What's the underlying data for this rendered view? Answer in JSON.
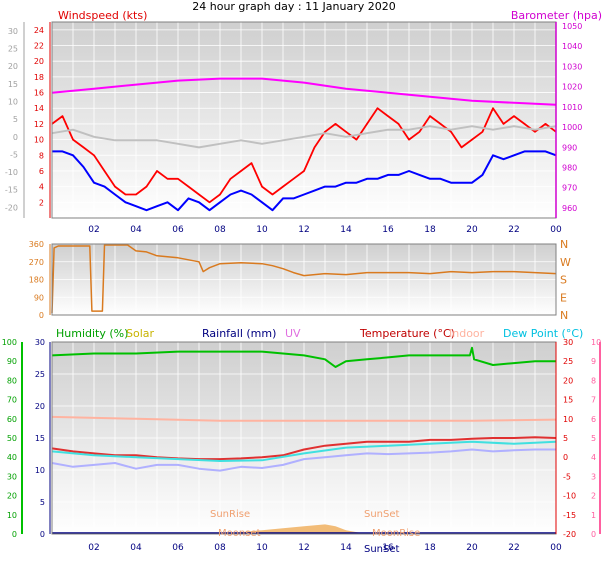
{
  "title": "24 hour graph day : 11 January 2020",
  "x_ticks": [
    "02",
    "04",
    "06",
    "08",
    "10",
    "12",
    "14",
    "16",
    "18",
    "20",
    "22",
    "00"
  ],
  "chart_data": [
    {
      "type": "line",
      "title": "",
      "labels": {
        "left": "Windspeed (kts)",
        "right": "Barometer (hpa)"
      },
      "x_range_hours": [
        0,
        24
      ],
      "left_axis": {
        "ticks": [
          2,
          4,
          6,
          8,
          10,
          12,
          14,
          16,
          18,
          20,
          22,
          24
        ],
        "range": [
          0,
          25
        ]
      },
      "outer_left_axis": {
        "ticks": [
          -20,
          -15,
          -10,
          -5,
          0,
          5,
          10,
          15,
          20,
          25,
          30
        ],
        "range": [
          -23,
          32.5
        ]
      },
      "right_axis": {
        "ticks": [
          960,
          970,
          980,
          990,
          1000,
          1010,
          1020,
          1030,
          1040,
          1050
        ],
        "range": [
          955,
          1052
        ]
      },
      "series": [
        {
          "name": "Windspeed (kts)",
          "axis": "left",
          "color": "#ff0000",
          "x": [
            0,
            0.5,
            1,
            1.5,
            2,
            2.5,
            3,
            3.5,
            4,
            4.5,
            5,
            5.5,
            6,
            6.5,
            7,
            7.5,
            8,
            8.5,
            9,
            9.5,
            10,
            10.5,
            11,
            11.5,
            12,
            12.5,
            13,
            13.5,
            14,
            14.5,
            15,
            15.5,
            16,
            16.5,
            17,
            17.5,
            18,
            18.5,
            19,
            19.5,
            20,
            20.5,
            21,
            21.5,
            22,
            22.5,
            23,
            23.5,
            24
          ],
          "y": [
            12,
            13,
            10,
            9,
            8,
            6,
            4,
            3,
            3,
            4,
            6,
            5,
            5,
            4,
            3,
            2,
            3,
            5,
            6,
            7,
            4,
            3,
            4,
            5,
            6,
            9,
            11,
            12,
            11,
            10,
            12,
            14,
            13,
            12,
            10,
            11,
            13,
            12,
            11,
            9,
            10,
            11,
            14,
            12,
            13,
            12,
            11,
            12,
            11
          ]
        },
        {
          "name": "Windspeed (kts)",
          "axis": "left",
          "color": "#0000ff",
          "x": [
            0,
            0.5,
            1,
            1.5,
            2,
            2.5,
            3,
            3.5,
            4,
            4.5,
            5,
            5.5,
            6,
            6.5,
            7,
            7.5,
            8,
            8.5,
            9,
            9.5,
            10,
            10.5,
            11,
            11.5,
            12,
            12.5,
            13,
            13.5,
            14,
            14.5,
            15,
            15.5,
            16,
            16.5,
            17,
            17.5,
            18,
            18.5,
            19,
            19.5,
            20,
            20.5,
            21,
            21.5,
            22,
            22.5,
            23,
            23.5,
            24
          ],
          "y": [
            8.5,
            8.5,
            8,
            6.5,
            4.5,
            4,
            3,
            2,
            1.5,
            1,
            1.5,
            2,
            1,
            2.5,
            2,
            1,
            2,
            3,
            3.5,
            3,
            2,
            1,
            2.5,
            2.5,
            3,
            3.5,
            4,
            4,
            4.5,
            4.5,
            5,
            5,
            5.5,
            5.5,
            6,
            5.5,
            5,
            5,
            4.5,
            4.5,
            4.5,
            5.5,
            8,
            7.5,
            8,
            8.5,
            8.5,
            8.5,
            8
          ]
        },
        {
          "name": "Outdoor temp (°C)",
          "axis": "outer_left",
          "color": "#c0c0c0",
          "x": [
            0,
            1,
            2,
            3,
            4,
            5,
            6,
            7,
            8,
            9,
            10,
            11,
            12,
            13,
            14,
            15,
            16,
            17,
            18,
            19,
            20,
            21,
            22,
            23,
            24
          ],
          "y": [
            1,
            2,
            0,
            -1,
            -1,
            -1,
            -2,
            -3,
            -2,
            -1,
            -2,
            -1,
            0,
            1,
            0,
            1,
            2,
            2,
            3,
            2,
            3,
            2,
            3,
            2,
            3
          ]
        },
        {
          "name": "Barometer (hpa)",
          "axis": "right",
          "color": "#ff00ff",
          "x": [
            0,
            2,
            4,
            6,
            8,
            10,
            12,
            14,
            16,
            18,
            20,
            22,
            24
          ],
          "y": [
            1017,
            1019,
            1021,
            1023,
            1024,
            1024,
            1022,
            1019,
            1017,
            1015,
            1013,
            1012,
            1011
          ]
        }
      ]
    },
    {
      "type": "line",
      "title": "",
      "left_axis": {
        "ticks": [
          0,
          90,
          180,
          270,
          360
        ],
        "range": [
          0,
          360
        ]
      },
      "right_axis": {
        "ticks": [
          "N",
          "E",
          "S",
          "W",
          "N"
        ]
      },
      "series": [
        {
          "name": "Wind direction",
          "color": "#d97a1f",
          "x": [
            0,
            0.1,
            0.3,
            1,
            1.8,
            1.9,
            2.4,
            2.5,
            3,
            3.6,
            4,
            4.5,
            5,
            6,
            7,
            7.2,
            7.5,
            8,
            9,
            10,
            10.5,
            11,
            11.5,
            12,
            13,
            14,
            15,
            16,
            17,
            18,
            19,
            20,
            21,
            22,
            23,
            24
          ],
          "y": [
            10,
            340,
            350,
            350,
            350,
            20,
            20,
            355,
            355,
            355,
            325,
            320,
            300,
            290,
            270,
            220,
            240,
            260,
            265,
            260,
            250,
            235,
            215,
            200,
            210,
            205,
            215,
            215,
            215,
            210,
            220,
            215,
            220,
            220,
            215,
            210
          ]
        }
      ]
    },
    {
      "type": "line",
      "title": "",
      "labels": {
        "humidity": "Humidity (%)",
        "solar": "Solar",
        "rainfall": "Rainfall (mm)",
        "uv": "UV",
        "temperature": "Temperature (°C)",
        "indoor": "Indoor",
        "dewpoint": "Dew Point (°C)"
      },
      "annotations": [
        "SunRise",
        "Moonset",
        "SunSet",
        "MoonRise",
        "SunSet"
      ],
      "humidity_axis": {
        "ticks": [
          0,
          10,
          20,
          30,
          40,
          50,
          60,
          70,
          80,
          90,
          100
        ],
        "range": [
          0,
          100
        ]
      },
      "rain_axis": {
        "ticks": [
          0,
          5,
          10,
          15,
          20,
          25,
          30
        ],
        "range": [
          0,
          30
        ]
      },
      "temp_axis": {
        "ticks": [
          -20,
          -15,
          -10,
          -5,
          0,
          5,
          10,
          15,
          20,
          25,
          30
        ],
        "range": [
          -20,
          30
        ]
      },
      "uv_axis": {
        "ticks": [
          0,
          1,
          2,
          3,
          4,
          5,
          6,
          7,
          8,
          9,
          10
        ],
        "range": [
          0,
          10
        ]
      },
      "series": [
        {
          "name": "Humidity (%)",
          "axis": "humidity",
          "color": "#00c000",
          "x": [
            0,
            2,
            4,
            6,
            7,
            8,
            9,
            10,
            11,
            12,
            13,
            13.5,
            14,
            15,
            16,
            17,
            18,
            19,
            19.9,
            20,
            20.1,
            21,
            22,
            23,
            24
          ],
          "y": [
            93,
            94,
            94,
            95,
            95,
            95,
            95,
            95,
            94,
            93,
            91,
            87,
            90,
            91,
            92,
            93,
            93,
            93,
            93,
            97,
            91,
            88,
            89,
            90,
            90
          ]
        },
        {
          "name": "Indoor",
          "axis": "temp",
          "color": "#ffb3a0",
          "x": [
            0,
            4,
            8,
            12,
            16,
            20,
            24
          ],
          "y": [
            10.5,
            10,
            9.5,
            9.5,
            9.5,
            9.5,
            9.8
          ]
        },
        {
          "name": "Temperature (°C)",
          "axis": "temp",
          "color": "#e03030",
          "x": [
            0,
            1,
            2,
            3,
            4,
            5,
            6,
            7,
            8,
            9,
            10,
            11,
            12,
            13,
            14,
            15,
            16,
            17,
            18,
            19,
            20,
            21,
            22,
            23,
            24
          ],
          "y": [
            2.3,
            1.5,
            1,
            0.5,
            0.5,
            0,
            -0.3,
            -0.5,
            -0.5,
            -0.3,
            0,
            0.5,
            2,
            3,
            3.5,
            4,
            4,
            4,
            4.5,
            4.5,
            4.8,
            5,
            5,
            5.2,
            5
          ]
        },
        {
          "name": "Dew Point (°C)",
          "axis": "temp",
          "color": "#40e0e0",
          "x": [
            0,
            2,
            4,
            6,
            8,
            10,
            12,
            14,
            16,
            18,
            20,
            22,
            24
          ],
          "y": [
            1.5,
            0.5,
            0,
            -0.5,
            -1,
            -0.8,
            1,
            2.5,
            3,
            3.5,
            4,
            3.5,
            4
          ]
        },
        {
          "name": "Outdoor temp (°C)",
          "axis": "temp",
          "color": "#b0b0ff",
          "x": [
            0,
            1,
            2,
            3,
            4,
            5,
            6,
            7,
            8,
            9,
            10,
            11,
            12,
            13,
            14,
            15,
            16,
            17,
            18,
            19,
            20,
            21,
            22,
            23,
            24
          ],
          "y": [
            -1.5,
            -2.5,
            -2,
            -1.5,
            -3,
            -2,
            -2,
            -3,
            -3.5,
            -2.5,
            -2.8,
            -2,
            -0.5,
            0,
            0.5,
            1,
            0.8,
            1,
            1.2,
            1.5,
            2,
            1.5,
            1.8,
            2,
            2
          ]
        },
        {
          "name": "Solar",
          "axis": "humidity",
          "color": "#f0b060",
          "style": "area",
          "x": [
            8,
            9,
            10,
            11,
            12,
            13,
            13.5,
            14,
            15
          ],
          "y": [
            0,
            1,
            2,
            3,
            4,
            5,
            4,
            2,
            0
          ]
        }
      ]
    }
  ]
}
